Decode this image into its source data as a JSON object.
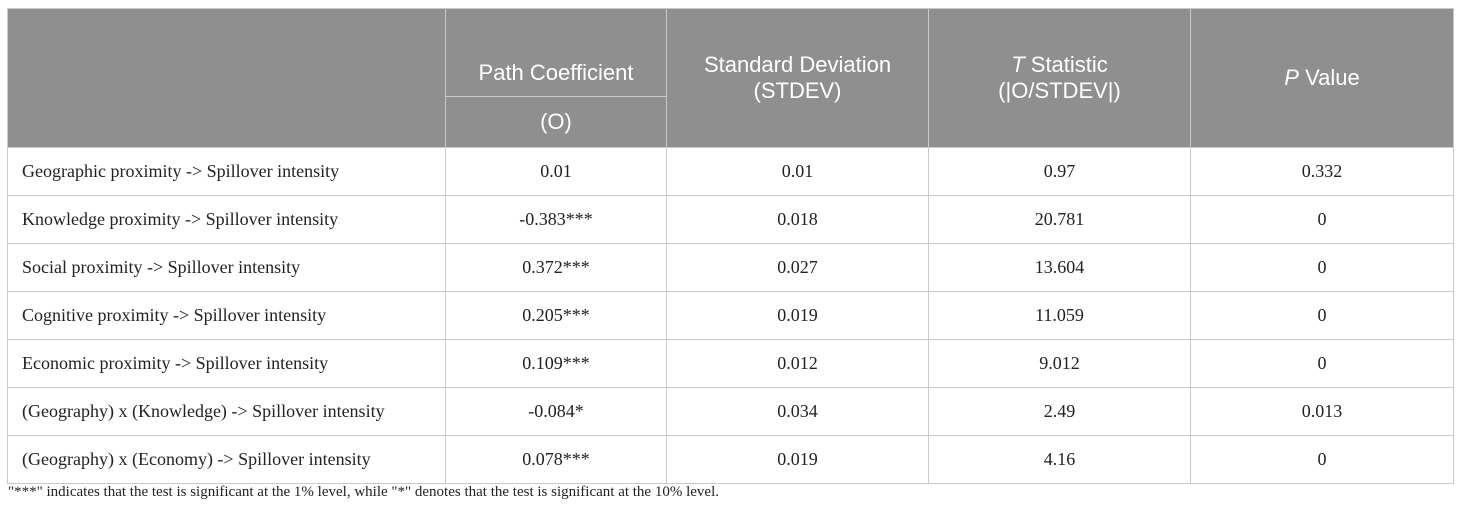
{
  "table": {
    "headers": {
      "path_coefficient_line1": "Path Coefficient",
      "path_coefficient_line2": "(O)",
      "stdev_line1": "Standard Deviation",
      "stdev_line2": "(STDEV)",
      "t_italic": "T",
      "t_rest": " Statistic",
      "t_line2": "(|O/STDEV|)",
      "p_italic": "P",
      "p_rest": " Value"
    },
    "rows": [
      {
        "label": "Geographic proximity -> Spillover intensity",
        "coef": "0.01",
        "stdev": "0.01",
        "t": "0.97",
        "p": "0.332"
      },
      {
        "label": "Knowledge proximity -> Spillover intensity",
        "coef": "-0.383***",
        "stdev": "0.018",
        "t": "20.781",
        "p": "0"
      },
      {
        "label": "Social proximity -> Spillover intensity",
        "coef": "0.372***",
        "stdev": "0.027",
        "t": "13.604",
        "p": "0"
      },
      {
        "label": "Cognitive proximity -> Spillover intensity",
        "coef": "0.205***",
        "stdev": "0.019",
        "t": "11.059",
        "p": "0"
      },
      {
        "label": "Economic proximity -> Spillover intensity",
        "coef": "0.109***",
        "stdev": "0.012",
        "t": "9.012",
        "p": "0"
      },
      {
        "label": "(Geography) x (Knowledge) -> Spillover intensity",
        "coef": "-0.084*",
        "stdev": "0.034",
        "t": "2.49",
        "p": "0.013"
      },
      {
        "label": "(Geography) x (Economy) -> Spillover intensity",
        "coef": "0.078***",
        "stdev": "0.019",
        "t": "4.16",
        "p": "0"
      }
    ]
  },
  "footnote": "\"***\" indicates that the test is significant at the 1% level, while \"*\" denotes that the test is significant at the 10% level."
}
